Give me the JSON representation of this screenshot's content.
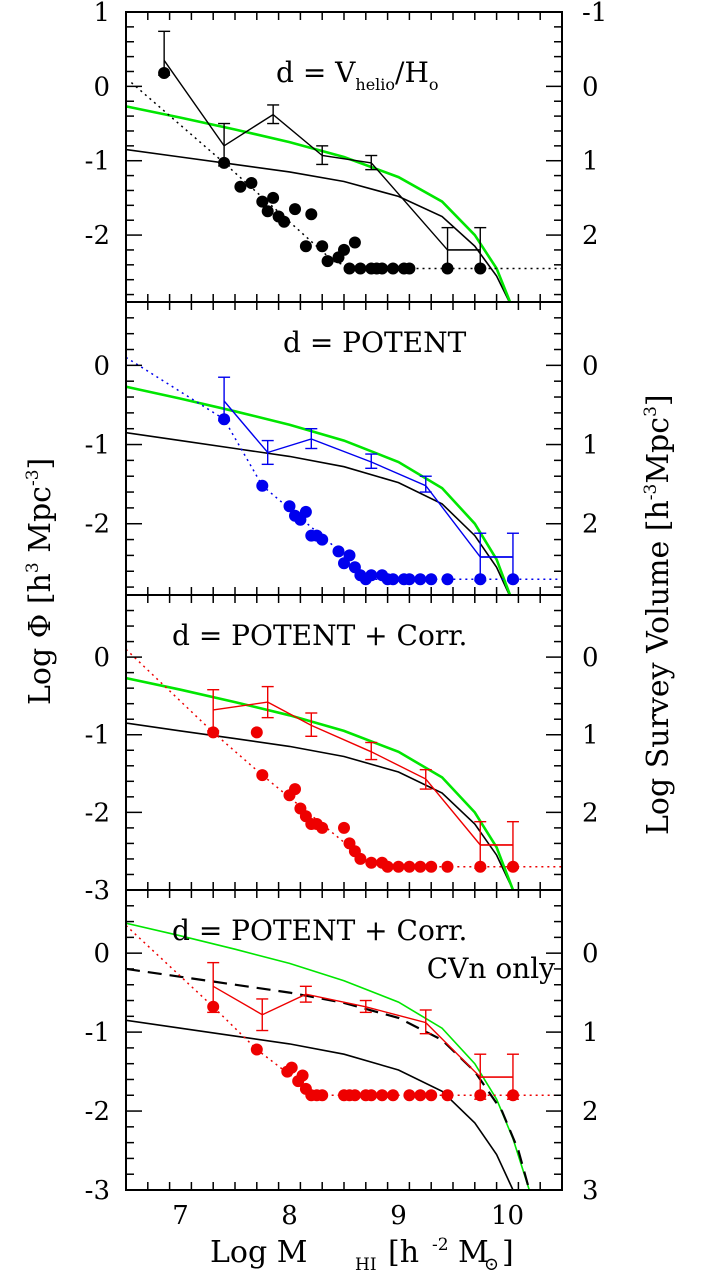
{
  "chart_data": {
    "type": "line",
    "x_axis": {
      "label_main": "Log M",
      "label_sub": "HI",
      "label_unit_open": "[h",
      "label_unit_exp": "-2",
      "label_unit_close": "M",
      "label_unit_sym": "⊙",
      "label_unit_end": "]",
      "range": [
        6.5,
        10.5
      ],
      "ticks": [
        7,
        8,
        9,
        10
      ]
    },
    "y_left": {
      "label_main": "Log Φ [h",
      "label_exp": "3",
      "label_mid": " Mpc",
      "label_exp2": "-3",
      "label_end": "]"
    },
    "y_right": {
      "label_main": "Log Survey Volume  [h",
      "label_exp": "-3",
      "label_mid": "Mpc",
      "label_exp2": "3",
      "label_end": "]"
    },
    "colors": {
      "black": "#000000",
      "green": "#00e600",
      "blue": "#0000ee",
      "red": "#ee0000"
    },
    "panels": [
      {
        "id": "p1",
        "ylim": [
          -2.9,
          1.0
        ],
        "yticks": [
          "1",
          "0",
          "-1",
          "-2"
        ],
        "ytick_values": [
          1,
          0,
          -1,
          -2
        ],
        "right_ticks": [
          "-1",
          "0",
          "1",
          "2"
        ],
        "right_tick_values": [
          1,
          0,
          -1,
          -2
        ],
        "annotation": "d = V",
        "annotation_sub": "helio",
        "annotation_tail": "/H",
        "annotation_sub2": "o",
        "color": "#000000",
        "mf": [
          [
            6.85,
            0.35
          ],
          [
            7.4,
            -0.8
          ],
          [
            7.85,
            -0.38
          ],
          [
            8.3,
            -0.93
          ],
          [
            8.75,
            -1.03
          ],
          [
            9.45,
            -2.2
          ],
          [
            9.75,
            -2.2
          ]
        ],
        "mf_err": [
          [
            6.85,
            0.15,
            0.74
          ],
          [
            7.4,
            -1.07,
            -0.5
          ],
          [
            7.85,
            -0.5,
            -0.25
          ],
          [
            8.3,
            -1.05,
            -0.8
          ],
          [
            8.75,
            -1.12,
            -0.93
          ],
          [
            9.45,
            -2.45,
            -1.9
          ],
          [
            9.75,
            -2.45,
            -1.9
          ]
        ],
        "mf_xerr": [
          [
            9.45,
            9.75,
            -2.2
          ]
        ],
        "survey": [
          [
            6.85,
            0.18
          ],
          [
            7.4,
            -1.03
          ],
          [
            7.55,
            -1.35
          ],
          [
            7.65,
            -1.3
          ],
          [
            7.75,
            -1.55
          ],
          [
            7.8,
            -1.68
          ],
          [
            7.85,
            -1.5
          ],
          [
            7.9,
            -1.75
          ],
          [
            7.95,
            -1.82
          ],
          [
            8.05,
            -1.65
          ],
          [
            8.15,
            -2.15
          ],
          [
            8.2,
            -1.72
          ],
          [
            8.3,
            -2.15
          ],
          [
            8.35,
            -2.35
          ],
          [
            8.45,
            -2.3
          ],
          [
            8.5,
            -2.2
          ],
          [
            8.55,
            -2.45
          ],
          [
            8.6,
            -2.1
          ],
          [
            8.65,
            -2.45
          ],
          [
            8.75,
            -2.45
          ],
          [
            8.8,
            -2.45
          ],
          [
            8.85,
            -2.45
          ],
          [
            8.95,
            -2.45
          ],
          [
            9.05,
            -2.45
          ],
          [
            9.1,
            -2.45
          ],
          [
            9.45,
            -2.45
          ],
          [
            9.75,
            -2.45
          ]
        ],
        "survey_dotted": [
          [
            6.55,
            0.05
          ],
          [
            7.4,
            -1.03
          ],
          [
            8.4,
            -2.35
          ],
          [
            8.6,
            -2.45
          ],
          [
            10.5,
            -2.45
          ]
        ],
        "dashed": []
      },
      {
        "id": "p2",
        "ylim": [
          -2.9,
          0.8
        ],
        "yticks": [
          "0",
          "-1",
          "-2"
        ],
        "ytick_values": [
          0,
          -1,
          -2
        ],
        "right_ticks": [
          "0",
          "1",
          "2"
        ],
        "right_tick_values": [
          0,
          -1,
          -2
        ],
        "annotation": "d = POTENT",
        "annotation_sub": "",
        "annotation_tail": "",
        "annotation_sub2": "",
        "color": "#0000ee",
        "mf": [
          [
            7.4,
            -0.45
          ],
          [
            7.8,
            -1.1
          ],
          [
            8.2,
            -0.93
          ],
          [
            8.75,
            -1.22
          ],
          [
            9.25,
            -1.52
          ],
          [
            9.75,
            -2.42
          ],
          [
            10.05,
            -2.42
          ]
        ],
        "mf_err": [
          [
            7.4,
            -0.7,
            -0.15
          ],
          [
            7.8,
            -1.25,
            -0.95
          ],
          [
            8.2,
            -1.05,
            -0.8
          ],
          [
            8.75,
            -1.3,
            -1.12
          ],
          [
            9.25,
            -1.6,
            -1.4
          ],
          [
            9.75,
            -2.72,
            -2.12
          ],
          [
            10.05,
            -2.72,
            -2.12
          ]
        ],
        "mf_xerr": [
          [
            9.75,
            10.05,
            -2.42
          ]
        ],
        "survey": [
          [
            7.4,
            -0.68
          ],
          [
            7.75,
            -1.52
          ],
          [
            8.0,
            -1.78
          ],
          [
            8.05,
            -1.9
          ],
          [
            8.1,
            -1.95
          ],
          [
            8.15,
            -1.85
          ],
          [
            8.2,
            -2.15
          ],
          [
            8.25,
            -2.15
          ],
          [
            8.3,
            -2.2
          ],
          [
            8.45,
            -2.35
          ],
          [
            8.5,
            -2.5
          ],
          [
            8.55,
            -2.4
          ],
          [
            8.6,
            -2.55
          ],
          [
            8.65,
            -2.65
          ],
          [
            8.7,
            -2.7
          ],
          [
            8.75,
            -2.65
          ],
          [
            8.85,
            -2.65
          ],
          [
            8.9,
            -2.7
          ],
          [
            8.95,
            -2.7
          ],
          [
            9.05,
            -2.7
          ],
          [
            9.1,
            -2.7
          ],
          [
            9.2,
            -2.7
          ],
          [
            9.3,
            -2.7
          ],
          [
            9.45,
            -2.7
          ],
          [
            9.75,
            -2.7
          ],
          [
            10.05,
            -2.7
          ]
        ],
        "survey_dotted": [
          [
            6.5,
            0.1
          ],
          [
            7.4,
            -0.68
          ],
          [
            7.75,
            -1.52
          ],
          [
            8.55,
            -2.45
          ],
          [
            8.7,
            -2.7
          ],
          [
            10.5,
            -2.7
          ]
        ],
        "dashed": []
      },
      {
        "id": "p3",
        "ylim": [
          -3.0,
          0.8
        ],
        "yticks": [
          "0",
          "-1",
          "-2",
          "-3"
        ],
        "ytick_values": [
          0,
          -1,
          -2,
          -3
        ],
        "right_ticks": [
          "0",
          "1",
          "2"
        ],
        "right_tick_values": [
          0,
          -1,
          -2
        ],
        "annotation": "d = POTENT + Corr.",
        "annotation_sub": "",
        "annotation_tail": "",
        "annotation_sub2": "",
        "color": "#ee0000",
        "mf": [
          [
            7.3,
            -0.68
          ],
          [
            7.8,
            -0.58
          ],
          [
            8.2,
            -0.88
          ],
          [
            8.75,
            -1.22
          ],
          [
            9.25,
            -1.57
          ],
          [
            9.75,
            -2.42
          ],
          [
            10.05,
            -2.42
          ]
        ],
        "mf_err": [
          [
            7.3,
            -0.95,
            -0.42
          ],
          [
            7.8,
            -0.78,
            -0.38
          ],
          [
            8.2,
            -1.02,
            -0.72
          ],
          [
            8.75,
            -1.32,
            -1.1
          ],
          [
            9.25,
            -1.7,
            -1.45
          ],
          [
            9.75,
            -2.72,
            -2.12
          ],
          [
            10.05,
            -2.72,
            -2.12
          ]
        ],
        "mf_xerr": [
          [
            9.75,
            10.05,
            -2.42
          ]
        ],
        "survey": [
          [
            7.3,
            -0.97
          ],
          [
            7.7,
            -0.97
          ],
          [
            7.75,
            -1.52
          ],
          [
            8.0,
            -1.78
          ],
          [
            8.05,
            -1.7
          ],
          [
            8.1,
            -1.95
          ],
          [
            8.15,
            -2.05
          ],
          [
            8.2,
            -2.15
          ],
          [
            8.25,
            -2.15
          ],
          [
            8.3,
            -2.2
          ],
          [
            8.5,
            -2.2
          ],
          [
            8.55,
            -2.4
          ],
          [
            8.6,
            -2.5
          ],
          [
            8.65,
            -2.6
          ],
          [
            8.75,
            -2.65
          ],
          [
            8.85,
            -2.65
          ],
          [
            8.9,
            -2.7
          ],
          [
            9.0,
            -2.7
          ],
          [
            9.1,
            -2.7
          ],
          [
            9.2,
            -2.7
          ],
          [
            9.3,
            -2.7
          ],
          [
            9.45,
            -2.7
          ],
          [
            9.75,
            -2.7
          ],
          [
            10.05,
            -2.7
          ]
        ],
        "survey_dotted": [
          [
            6.5,
            0.1
          ],
          [
            7.3,
            -0.97
          ],
          [
            7.75,
            -1.52
          ],
          [
            8.6,
            -2.5
          ],
          [
            8.75,
            -2.7
          ],
          [
            10.5,
            -2.7
          ]
        ],
        "dashed": []
      },
      {
        "id": "p4",
        "ylim": [
          -3.0,
          0.8
        ],
        "yticks": [
          "0",
          "-1",
          "-2",
          "-3"
        ],
        "ytick_values": [
          0,
          -1,
          -2,
          -3
        ],
        "right_ticks": [
          "0",
          "1",
          "2",
          "3"
        ],
        "right_tick_values": [
          0,
          -1,
          -2,
          -3
        ],
        "annotation": "d = POTENT + Corr.",
        "annotation_sub": "",
        "annotation_tail": "",
        "annotation_sub2": "",
        "annotation2": "CVn only",
        "color": "#ee0000",
        "mf": [
          [
            7.3,
            -0.42
          ],
          [
            7.75,
            -0.78
          ],
          [
            8.15,
            -0.52
          ],
          [
            8.7,
            -0.68
          ],
          [
            9.25,
            -0.88
          ],
          [
            9.75,
            -1.57
          ],
          [
            10.05,
            -1.57
          ]
        ],
        "mf_err": [
          [
            7.3,
            -0.75,
            -0.12
          ],
          [
            7.75,
            -0.98,
            -0.58
          ],
          [
            8.15,
            -0.62,
            -0.42
          ],
          [
            8.7,
            -0.75,
            -0.6
          ],
          [
            9.25,
            -1.02,
            -0.72
          ],
          [
            9.75,
            -1.85,
            -1.28
          ],
          [
            10.05,
            -1.85,
            -1.28
          ]
        ],
        "mf_xerr": [
          [
            9.75,
            10.05,
            -1.57
          ]
        ],
        "survey": [
          [
            7.3,
            -0.68
          ],
          [
            7.7,
            -1.22
          ],
          [
            7.98,
            -1.5
          ],
          [
            8.02,
            -1.45
          ],
          [
            8.08,
            -1.62
          ],
          [
            8.12,
            -1.55
          ],
          [
            8.15,
            -1.72
          ],
          [
            8.2,
            -1.8
          ],
          [
            8.25,
            -1.8
          ],
          [
            8.3,
            -1.8
          ],
          [
            8.5,
            -1.8
          ],
          [
            8.55,
            -1.8
          ],
          [
            8.6,
            -1.8
          ],
          [
            8.7,
            -1.8
          ],
          [
            8.75,
            -1.8
          ],
          [
            8.85,
            -1.8
          ],
          [
            8.95,
            -1.8
          ],
          [
            9.1,
            -1.8
          ],
          [
            9.2,
            -1.8
          ],
          [
            9.3,
            -1.8
          ],
          [
            9.45,
            -1.8
          ],
          [
            9.75,
            -1.8
          ],
          [
            10.05,
            -1.8
          ]
        ],
        "survey_dotted": [
          [
            6.5,
            0.35
          ],
          [
            7.3,
            -0.68
          ],
          [
            7.7,
            -1.22
          ],
          [
            8.2,
            -1.75
          ],
          [
            8.3,
            -1.8
          ],
          [
            10.5,
            -1.8
          ]
        ],
        "dashed": [
          [
            6.5,
            -0.2
          ],
          [
            7.0,
            -0.3
          ],
          [
            7.5,
            -0.4
          ],
          [
            8.0,
            -0.5
          ],
          [
            8.5,
            -0.63
          ],
          [
            9.0,
            -0.82
          ],
          [
            9.4,
            -1.1
          ],
          [
            9.7,
            -1.5
          ],
          [
            9.95,
            -2.0
          ],
          [
            10.1,
            -2.5
          ],
          [
            10.2,
            -3.0
          ]
        ],
        "green_alt": [
          [
            6.5,
            0.38
          ],
          [
            7.0,
            0.22
          ],
          [
            7.5,
            0.05
          ],
          [
            8.0,
            -0.13
          ],
          [
            8.5,
            -0.35
          ],
          [
            9.0,
            -0.62
          ],
          [
            9.4,
            -0.95
          ],
          [
            9.7,
            -1.4
          ],
          [
            9.9,
            -1.85
          ],
          [
            10.05,
            -2.35
          ],
          [
            10.2,
            -3.0
          ]
        ]
      }
    ],
    "schechter_black": [
      [
        6.5,
        -0.85
      ],
      [
        7.0,
        -0.95
      ],
      [
        7.5,
        -1.05
      ],
      [
        8.0,
        -1.15
      ],
      [
        8.5,
        -1.28
      ],
      [
        9.0,
        -1.48
      ],
      [
        9.4,
        -1.75
      ],
      [
        9.7,
        -2.15
      ],
      [
        9.9,
        -2.55
      ],
      [
        10.05,
        -3.0
      ]
    ],
    "schechter_green": [
      [
        6.5,
        -0.27
      ],
      [
        7.0,
        -0.42
      ],
      [
        7.5,
        -0.58
      ],
      [
        8.0,
        -0.75
      ],
      [
        8.5,
        -0.95
      ],
      [
        9.0,
        -1.22
      ],
      [
        9.4,
        -1.55
      ],
      [
        9.7,
        -2.0
      ],
      [
        9.9,
        -2.45
      ],
      [
        10.05,
        -3.0
      ]
    ]
  }
}
